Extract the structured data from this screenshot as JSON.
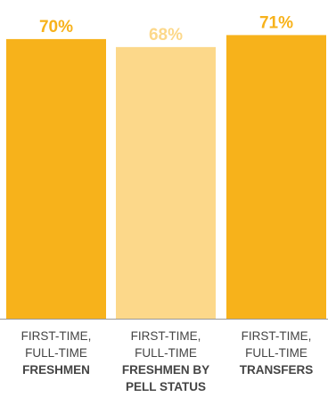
{
  "chart_data": {
    "type": "bar",
    "title": "",
    "xlabel": "",
    "ylabel": "",
    "ylim": [
      0,
      78
    ],
    "grid": false,
    "categories": [
      "FIRST-TIME, FULL-TIME FRESHMEN",
      "FIRST-TIME, FULL-TIME FRESHMEN BY PELL STATUS",
      "FIRST-TIME, FULL-TIME TRANSFERS"
    ],
    "category_label_lines": [
      [
        {
          "text": "FIRST-TIME,",
          "bold": false
        },
        {
          "text": "FULL-TIME",
          "bold": false
        },
        {
          "text": "FRESHMEN",
          "bold": true
        }
      ],
      [
        {
          "text": "FIRST-TIME,",
          "bold": false
        },
        {
          "text": "FULL-TIME",
          "bold": false
        },
        {
          "text": "FRESHMEN BY",
          "bold": true
        },
        {
          "text": "PELL STATUS",
          "bold": true
        }
      ],
      [
        {
          "text": "FIRST-TIME,",
          "bold": false
        },
        {
          "text": "FULL-TIME",
          "bold": false
        },
        {
          "text": "TRANSFERS",
          "bold": true
        }
      ]
    ],
    "values": [
      70,
      68,
      71
    ],
    "value_labels": [
      "70%",
      "68%",
      "71%"
    ],
    "bar_colors": [
      "#F7B21B",
      "#FCD88A",
      "#F7B21B"
    ],
    "label_colors": [
      "#F7B21B",
      "#FCD88A",
      "#F7B21B"
    ],
    "axis_color": "#999999"
  }
}
